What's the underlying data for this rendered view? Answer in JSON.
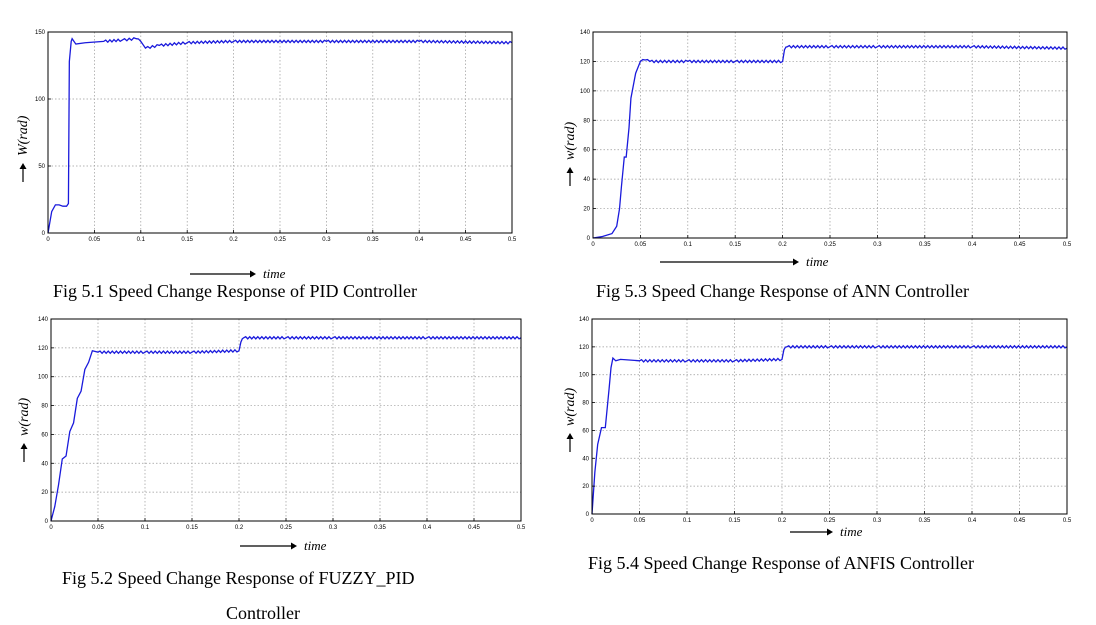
{
  "chart_data": [
    {
      "type": "line",
      "caption": "Fig 5.1 Speed Change Response of PID Controller",
      "ylabel": "W(rad)",
      "xlabel": "time",
      "xlim": [
        0,
        0.5
      ],
      "ylim": [
        0,
        150
      ],
      "xticks": [
        0,
        0.05,
        0.1,
        0.15,
        0.2,
        0.25,
        0.3,
        0.35,
        0.4,
        0.45,
        0.5
      ],
      "xtick_labels": [
        "0",
        "0.05",
        "0.1",
        "0.15",
        "0.2",
        "0.25",
        "0.3",
        "0.35",
        "0.4",
        "0.45",
        "0.5"
      ],
      "yticks": [
        0,
        50,
        100,
        150
      ],
      "ytick_labels": [
        "0",
        "50",
        "100",
        "150"
      ],
      "grid": true,
      "series": [
        {
          "color": "#1a1adc",
          "x": [
            0,
            0.004,
            0.008,
            0.012,
            0.016,
            0.02,
            0.022,
            0.023,
            0.025,
            0.026,
            0.03,
            0.04,
            0.06,
            0.08,
            0.095,
            0.1,
            0.105,
            0.12,
            0.15,
            0.2,
            0.3,
            0.4,
            0.5
          ],
          "y": [
            0,
            16,
            21,
            21,
            20,
            20,
            22,
            128,
            143,
            145,
            141,
            142,
            143,
            144,
            145,
            143,
            138,
            140,
            142,
            143,
            143,
            143,
            142
          ]
        }
      ]
    },
    {
      "type": "line",
      "caption": "Fig 5.3 Speed Change Response of ANN Controller",
      "ylabel": "w(rad)",
      "xlabel": "time",
      "xlim": [
        0,
        0.5
      ],
      "ylim": [
        0,
        140
      ],
      "xticks": [
        0,
        0.05,
        0.1,
        0.15,
        0.2,
        0.25,
        0.3,
        0.35,
        0.4,
        0.45,
        0.5
      ],
      "xtick_labels": [
        "0",
        "0.05",
        "0.1",
        "0.15",
        "0.2",
        "0.25",
        "0.3",
        "0.35",
        "0.4",
        "0.45",
        "0.5"
      ],
      "yticks": [
        0,
        20,
        40,
        60,
        80,
        100,
        120,
        140
      ],
      "ytick_labels": [
        "0",
        "20",
        "40",
        "60",
        "80",
        "100",
        "120",
        "140"
      ],
      "grid": true,
      "series": [
        {
          "color": "#1a1adc",
          "x": [
            0,
            0.01,
            0.02,
            0.025,
            0.028,
            0.03,
            0.033,
            0.035,
            0.038,
            0.04,
            0.045,
            0.05,
            0.055,
            0.06,
            0.1,
            0.15,
            0.2,
            0.202,
            0.205,
            0.25,
            0.3,
            0.4,
            0.5
          ],
          "y": [
            0,
            1,
            3,
            8,
            20,
            35,
            55,
            55,
            75,
            95,
            112,
            120,
            121,
            120,
            120,
            120,
            120,
            128,
            130,
            130,
            130,
            130,
            129
          ]
        }
      ]
    },
    {
      "type": "line",
      "caption": "Fig 5.2 Speed Change Response of FUZZY_PID",
      "caption2": "Controller",
      "ylabel": "w(rad)",
      "xlabel": "time",
      "xlim": [
        0,
        0.5
      ],
      "ylim": [
        0,
        140
      ],
      "xticks": [
        0,
        0.05,
        0.1,
        0.15,
        0.2,
        0.25,
        0.3,
        0.35,
        0.4,
        0.45,
        0.5
      ],
      "xtick_labels": [
        "0",
        "0.05",
        "0.1",
        "0.15",
        "0.2",
        "0.25",
        "0.3",
        "0.35",
        "0.4",
        "0.45",
        "0.5"
      ],
      "yticks": [
        0,
        20,
        40,
        60,
        80,
        100,
        120,
        140
      ],
      "ytick_labels": [
        "0",
        "20",
        "40",
        "60",
        "80",
        "100",
        "120",
        "140"
      ],
      "grid": true,
      "series": [
        {
          "color": "#1a1adc",
          "x": [
            0,
            0.004,
            0.008,
            0.012,
            0.016,
            0.02,
            0.024,
            0.028,
            0.032,
            0.036,
            0.04,
            0.044,
            0.05,
            0.1,
            0.15,
            0.2,
            0.202,
            0.205,
            0.25,
            0.3,
            0.4,
            0.5
          ],
          "y": [
            0,
            10,
            25,
            43,
            45,
            62,
            68,
            85,
            90,
            105,
            110,
            118,
            117,
            117,
            117,
            118,
            124,
            127,
            127,
            127,
            127,
            127
          ]
        }
      ]
    },
    {
      "type": "line",
      "caption": "Fig 5.4 Speed Change Response of ANFIS Controller",
      "ylabel": "w(rad)",
      "xlabel": "time",
      "xlim": [
        0,
        0.5
      ],
      "ylim": [
        0,
        140
      ],
      "xticks": [
        0,
        0.05,
        0.1,
        0.15,
        0.2,
        0.25,
        0.3,
        0.35,
        0.4,
        0.45,
        0.5
      ],
      "xtick_labels": [
        "0",
        "0.05",
        "0.1",
        "0.15",
        "0.2",
        "0.25",
        "0.3",
        "0.35",
        "0.4",
        "0.45",
        "0.5"
      ],
      "yticks": [
        0,
        20,
        40,
        60,
        80,
        100,
        120,
        140
      ],
      "ytick_labels": [
        "0",
        "20",
        "40",
        "60",
        "80",
        "100",
        "120",
        "140"
      ],
      "grid": true,
      "series": [
        {
          "color": "#1a1adc",
          "x": [
            0,
            0.003,
            0.006,
            0.01,
            0.014,
            0.018,
            0.02,
            0.022,
            0.025,
            0.03,
            0.05,
            0.1,
            0.15,
            0.2,
            0.202,
            0.205,
            0.25,
            0.3,
            0.4,
            0.5
          ],
          "y": [
            0,
            30,
            50,
            62,
            62,
            90,
            105,
            112,
            110,
            111,
            110,
            110,
            110,
            111,
            118,
            120,
            120,
            120,
            120,
            120
          ]
        }
      ]
    }
  ]
}
